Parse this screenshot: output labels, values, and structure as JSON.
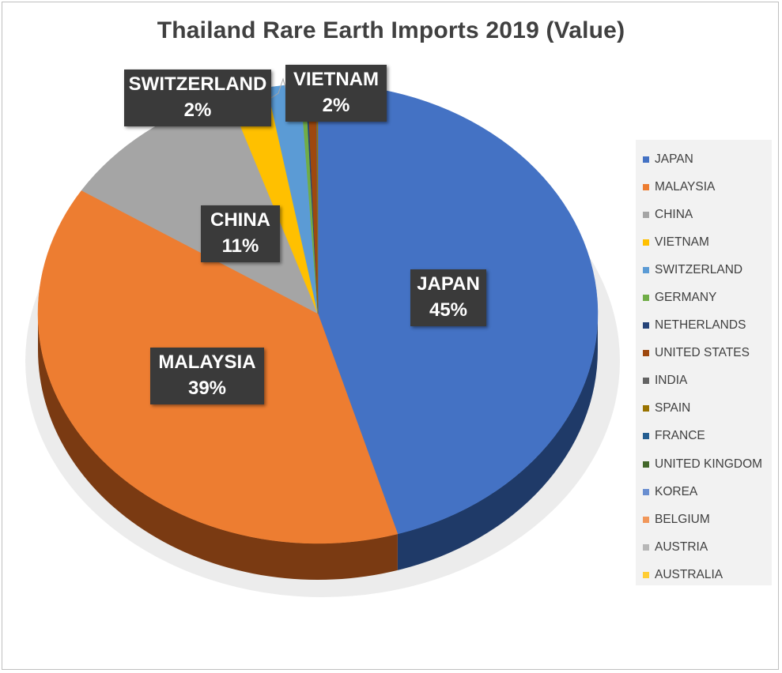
{
  "chart_data": {
    "type": "pie",
    "title": "Thailand Rare Earth Imports 2019 (Value)",
    "legend_position": "right",
    "slices": [
      {
        "name": "JAPAN",
        "value": 45.4,
        "color": "#4472c4",
        "side": "#1f3a68",
        "label": "45%"
      },
      {
        "name": "MALAYSIA",
        "value": 38.6,
        "color": "#ed7d31",
        "side": "#7a3a12",
        "label": "39%"
      },
      {
        "name": "CHINA",
        "value": 10.8,
        "color": "#a5a5a5",
        "side": "#5a5a5a",
        "label": "11%"
      },
      {
        "name": "VIETNAM",
        "value": 2.3,
        "color": "#ffc000",
        "side": "#8a6800",
        "label": "2%"
      },
      {
        "name": "SWITZERLAND",
        "value": 1.9,
        "color": "#5b9bd5",
        "side": "#2e5577",
        "label": "2%"
      },
      {
        "name": "GERMANY",
        "value": 0.3,
        "color": "#70ad47",
        "side": "#3b5c26",
        "label": ""
      },
      {
        "name": "NETHERLANDS",
        "value": 0.1,
        "color": "#264478",
        "side": "#14233d",
        "label": ""
      },
      {
        "name": "UNITED STATES",
        "value": 0.5,
        "color": "#9e480e",
        "side": "#552607",
        "label": ""
      },
      {
        "name": "INDIA",
        "value": 0.05,
        "color": "#636363",
        "side": "#333333",
        "label": ""
      },
      {
        "name": "SPAIN",
        "value": 0.05,
        "color": "#997300",
        "side": "#4d3a00",
        "label": ""
      },
      {
        "name": "FRANCE",
        "value": 0.0,
        "color": "#255e91",
        "side": "#123049",
        "label": ""
      },
      {
        "name": "UNITED KINGDOM",
        "value": 0.0,
        "color": "#43682b",
        "side": "#223516",
        "label": ""
      },
      {
        "name": "KOREA",
        "value": 0.0,
        "color": "#698ed0",
        "side": "#354868",
        "label": ""
      },
      {
        "name": "BELGIUM",
        "value": 0.0,
        "color": "#f1975a",
        "side": "#7a4c2d",
        "label": ""
      },
      {
        "name": "AUSTRIA",
        "value": 0.0,
        "color": "#b7b7b7",
        "side": "#5c5c5c",
        "label": ""
      },
      {
        "name": "AUSTRALIA",
        "value": 0.0,
        "color": "#ffcd33",
        "side": "#80671a",
        "label": ""
      }
    ],
    "data_labels": [
      {
        "name": "JAPAN",
        "text": "45%"
      },
      {
        "name": "MALAYSIA",
        "text": "39%"
      },
      {
        "name": "CHINA",
        "text": "11%"
      },
      {
        "name": "SWITZERLAND",
        "text": "2%"
      },
      {
        "name": "VIETNAM",
        "text": "2%"
      }
    ]
  }
}
